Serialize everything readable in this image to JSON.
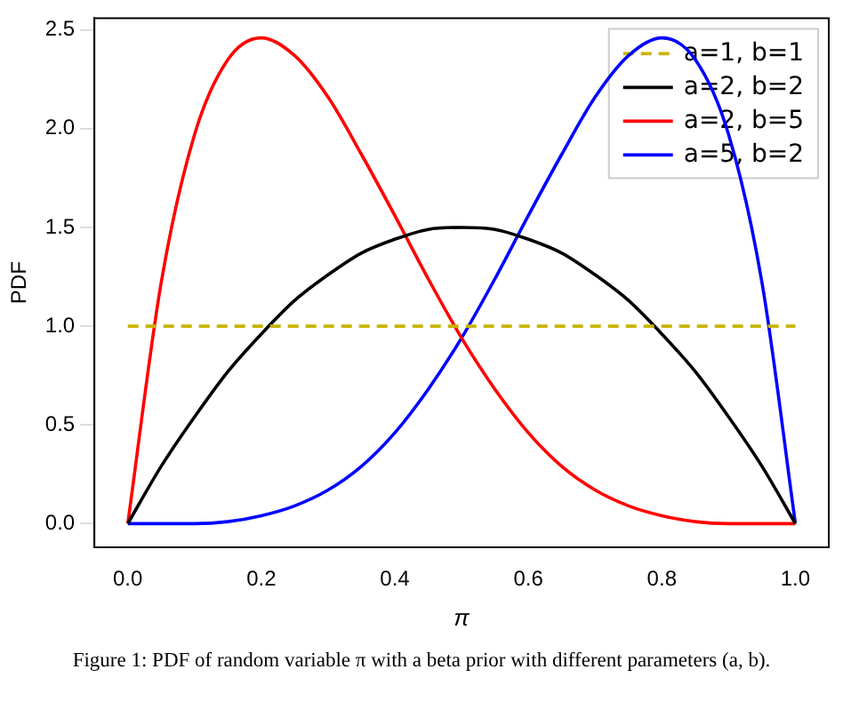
{
  "chart_data": {
    "type": "line",
    "xlabel": "π",
    "ylabel": "PDF",
    "x": [
      0,
      0.05,
      0.1,
      0.15,
      0.2,
      0.25,
      0.3,
      0.35,
      0.4,
      0.45,
      0.5,
      0.55,
      0.6,
      0.65,
      0.7,
      0.75,
      0.8,
      0.85,
      0.9,
      0.95,
      1
    ],
    "series": [
      {
        "name": "a=1, b=1",
        "color": "#c8b400",
        "line_style": "dashed",
        "values": [
          1,
          1,
          1,
          1,
          1,
          1,
          1,
          1,
          1,
          1,
          1,
          1,
          1,
          1,
          1,
          1,
          1,
          1,
          1,
          1,
          1
        ]
      },
      {
        "name": "a=2, b=2",
        "color": "#000000",
        "line_style": "solid",
        "values": [
          0,
          0.29,
          0.54,
          0.77,
          0.96,
          1.13,
          1.26,
          1.37,
          1.44,
          1.49,
          1.5,
          1.49,
          1.44,
          1.37,
          1.26,
          1.13,
          0.96,
          0.77,
          0.54,
          0.29,
          0
        ]
      },
      {
        "name": "a=2, b=5",
        "color": "#ff0000",
        "line_style": "solid",
        "values": [
          0,
          1.22,
          1.97,
          2.35,
          2.46,
          2.37,
          2.16,
          1.87,
          1.56,
          1.24,
          0.94,
          0.68,
          0.46,
          0.29,
          0.17,
          0.09,
          0.04,
          0.01,
          0,
          0,
          0
        ]
      },
      {
        "name": "a=5, b=2",
        "color": "#0000ff",
        "line_style": "solid",
        "values": [
          0,
          0,
          0,
          0.01,
          0.04,
          0.09,
          0.17,
          0.29,
          0.46,
          0.68,
          0.94,
          1.24,
          1.56,
          1.87,
          2.16,
          2.37,
          2.46,
          2.35,
          1.97,
          1.22,
          0
        ]
      }
    ],
    "xlim": [
      -0.05,
      1.05
    ],
    "xticks": [
      {
        "value": 0,
        "label": "0.0"
      },
      0.2,
      0.4,
      0.6,
      0.8,
      {
        "value": 1,
        "label": "1.0"
      }
    ],
    "ylim": [
      -0.12,
      2.56
    ],
    "yticks": [
      {
        "value": 0,
        "label": "0.0"
      },
      0.5,
      {
        "value": 1,
        "label": "1.0"
      },
      1.5,
      {
        "value": 2,
        "label": "2.0"
      },
      2.5
    ],
    "grid": false,
    "legend": "top right",
    "marker": "none",
    "annotations": [
      "Figure 1: PDF of random variable π with a beta prior with different parameters (a, b)."
    ]
  }
}
